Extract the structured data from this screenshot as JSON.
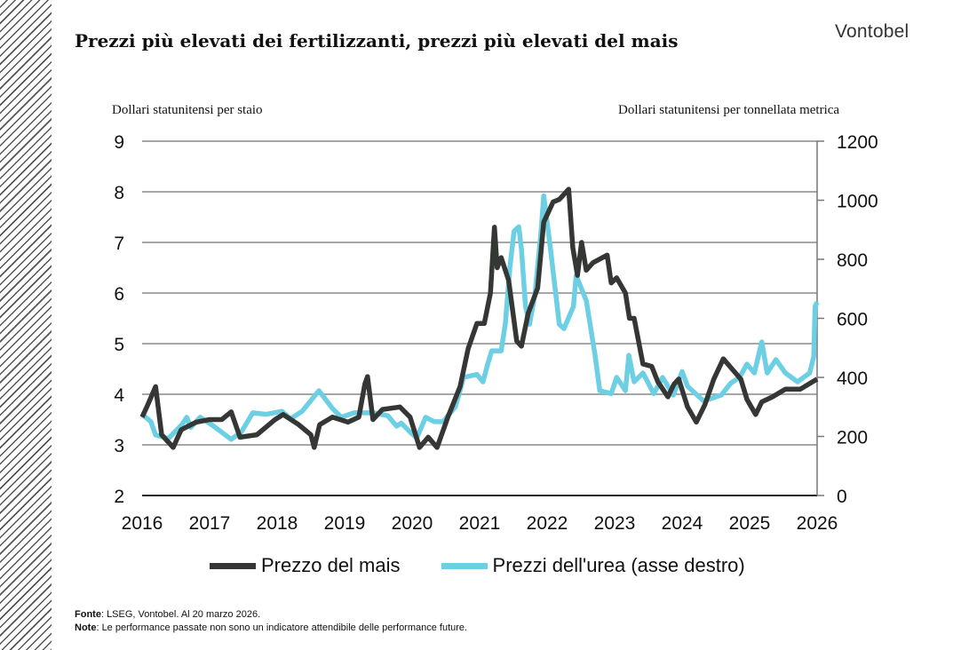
{
  "title": "Prezzi più elevati dei fertilizzanti, prezzi più elevati del mais",
  "logo": "Vontobel",
  "footer": {
    "source_label": "Fonte",
    "source_text": ": LSEG, Vontobel. Al 20 marzo 2026.",
    "note_label": "Note",
    "note_text": ": Le performance passate non sono un indicatore attendibile delle performance future."
  },
  "chart_data": {
    "type": "line",
    "ylabel_left": "Dollari statunitensi per staio",
    "ylabel_right": "Dollari statunitensi per tonnellata metrica",
    "xlim": [
      2016,
      2026
    ],
    "ylim_left": [
      2,
      9
    ],
    "ylim_right": [
      0,
      1200
    ],
    "x_ticks": [
      "2016",
      "2017",
      "2018",
      "2019",
      "2020",
      "2021",
      "2022",
      "2023",
      "2024",
      "2025",
      "2026"
    ],
    "y_ticks_left": [
      "2",
      "3",
      "4",
      "5",
      "6",
      "7",
      "8",
      "9"
    ],
    "y_ticks_right": [
      "0",
      "200",
      "400",
      "600",
      "800",
      "1000",
      "1200"
    ],
    "grid": true,
    "legend_position": "bottom",
    "series": [
      {
        "name": "Prezzo del mais",
        "axis": "left",
        "color": "#353735",
        "x": [
          2016.0,
          2016.07,
          2016.2,
          2016.29,
          2016.46,
          2016.58,
          2016.8,
          2017.0,
          2017.18,
          2017.32,
          2017.45,
          2017.7,
          2017.97,
          2018.09,
          2018.32,
          2018.5,
          2018.55,
          2018.63,
          2018.82,
          2019.05,
          2019.21,
          2019.3,
          2019.34,
          2019.42,
          2019.56,
          2019.82,
          2019.97,
          2020.11,
          2020.24,
          2020.37,
          2020.53,
          2020.71,
          2020.83,
          2020.96,
          2021.07,
          2021.16,
          2021.22,
          2021.26,
          2021.32,
          2021.43,
          2021.55,
          2021.62,
          2021.72,
          2021.86,
          2021.95,
          2022.09,
          2022.18,
          2022.32,
          2022.38,
          2022.45,
          2022.51,
          2022.58,
          2022.68,
          2022.89,
          2022.95,
          2023.03,
          2023.16,
          2023.22,
          2023.29,
          2023.42,
          2023.55,
          2023.64,
          2023.79,
          2023.88,
          2023.95,
          2024.08,
          2024.21,
          2024.34,
          2024.47,
          2024.61,
          2024.74,
          2024.87,
          2024.96,
          2025.09,
          2025.18,
          2025.34,
          2025.53,
          2025.75,
          2026.0
        ],
        "y": [
          3.55,
          3.75,
          4.15,
          3.2,
          2.95,
          3.3,
          3.45,
          3.5,
          3.5,
          3.65,
          3.15,
          3.2,
          3.5,
          3.6,
          3.4,
          3.2,
          2.95,
          3.4,
          3.55,
          3.45,
          3.55,
          4.2,
          4.35,
          3.5,
          3.7,
          3.75,
          3.55,
          2.95,
          3.15,
          2.95,
          3.55,
          4.15,
          4.9,
          5.4,
          5.4,
          6.0,
          7.3,
          6.5,
          6.7,
          6.25,
          5.05,
          4.95,
          5.6,
          6.1,
          7.4,
          7.8,
          7.85,
          8.05,
          6.9,
          6.35,
          7.0,
          6.45,
          6.6,
          6.75,
          6.2,
          6.3,
          6.0,
          5.5,
          5.5,
          4.6,
          4.55,
          4.25,
          3.95,
          4.2,
          4.3,
          3.75,
          3.45,
          3.8,
          4.3,
          4.7,
          4.5,
          4.3,
          3.9,
          3.6,
          3.85,
          3.95,
          4.1,
          4.1,
          4.3
        ]
      },
      {
        "name": "Prezzi dell'urea (asse destro)",
        "axis": "right",
        "color": "#6ccfe3",
        "x": [
          2016.0,
          2016.13,
          2016.2,
          2016.39,
          2016.59,
          2016.66,
          2016.72,
          2016.86,
          2017.06,
          2017.32,
          2017.47,
          2017.64,
          2017.84,
          2018.07,
          2018.2,
          2018.37,
          2018.53,
          2018.62,
          2018.82,
          2018.95,
          2019.14,
          2019.43,
          2019.64,
          2019.77,
          2019.84,
          2019.97,
          2020.07,
          2020.2,
          2020.33,
          2020.46,
          2020.53,
          2020.64,
          2020.71,
          2020.76,
          2020.96,
          2021.05,
          2021.12,
          2021.18,
          2021.32,
          2021.38,
          2021.45,
          2021.51,
          2021.58,
          2021.62,
          2021.68,
          2021.74,
          2021.82,
          2021.91,
          2021.95,
          2022.05,
          2022.18,
          2022.25,
          2022.39,
          2022.43,
          2022.58,
          2022.71,
          2022.78,
          2022.95,
          2023.03,
          2023.16,
          2023.21,
          2023.29,
          2023.42,
          2023.58,
          2023.71,
          2023.87,
          2024.0,
          2024.08,
          2024.32,
          2024.58,
          2024.72,
          2024.85,
          2024.96,
          2025.07,
          2025.18,
          2025.26,
          2025.39,
          2025.53,
          2025.71,
          2025.89,
          2025.95,
          2025.97,
          2026.0
        ],
        "y": [
          275,
          250,
          205,
          193,
          240,
          265,
          230,
          265,
          235,
          190,
          215,
          280,
          275,
          285,
          260,
          285,
          330,
          355,
          295,
          265,
          280,
          280,
          270,
          235,
          245,
          215,
          195,
          265,
          250,
          250,
          270,
          300,
          355,
          400,
          410,
          385,
          445,
          490,
          490,
          580,
          775,
          895,
          910,
          835,
          640,
          580,
          680,
          895,
          1015,
          835,
          580,
          565,
          640,
          745,
          660,
          475,
          355,
          345,
          400,
          355,
          475,
          385,
          415,
          345,
          400,
          340,
          420,
          370,
          320,
          340,
          380,
          400,
          445,
          415,
          520,
          415,
          460,
          415,
          385,
          415,
          470,
          640,
          655
        ]
      }
    ]
  }
}
